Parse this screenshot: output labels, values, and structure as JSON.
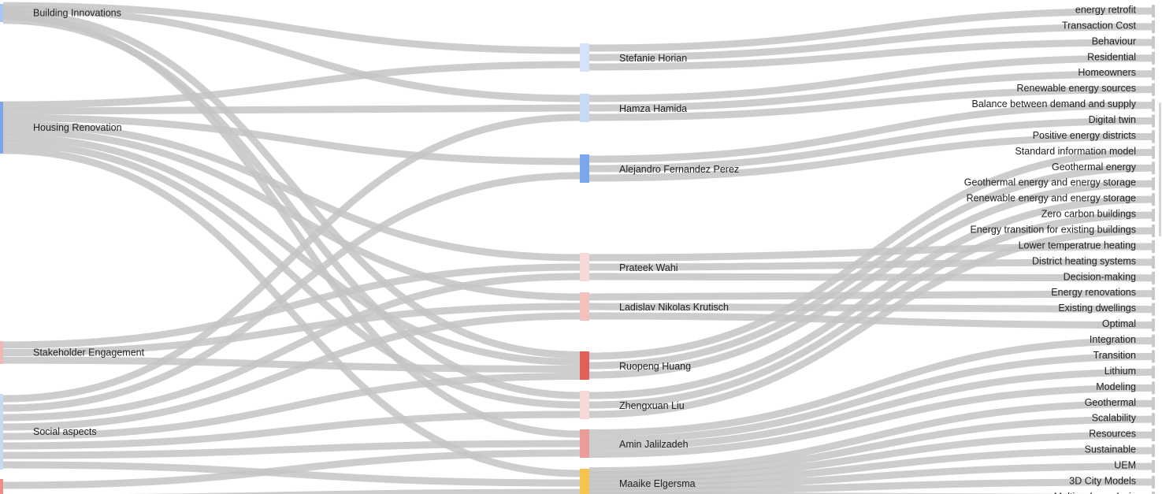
{
  "colors": {
    "link": "#c4c4c4",
    "blue_light": "#c6d9f5",
    "blue_mid": "#a9c6f2",
    "blue_strong": "#7ba5ec",
    "pink_light": "#f7d4d2",
    "pink_mid": "#f2b8b4",
    "red_strong": "#e0605a",
    "red_mid": "#ec9c98",
    "yellow": "#f6c44c"
  },
  "left_nodes": [
    {
      "id": "building",
      "label": "Building Innovations",
      "color": "#a9c6f2"
    },
    {
      "id": "housing",
      "label": "Housing Renovation",
      "color": "#7ba5ec"
    },
    {
      "id": "stake",
      "label": "Stakeholder Engagement",
      "color": "#f2b8b4"
    },
    {
      "id": "social",
      "label": "Social aspects",
      "color": "#c6d9f5"
    },
    {
      "id": "partial",
      "label": "",
      "color": "#ec8f8a"
    }
  ],
  "middle_nodes": [
    {
      "id": "horian",
      "label": "Stefanie Horian",
      "color": "#d4e3f8"
    },
    {
      "id": "hamida",
      "label": "Hamza Hamida",
      "color": "#c6d9f5"
    },
    {
      "id": "perez",
      "label": "Alejandro Fernandez Perez",
      "color": "#7ba5ec"
    },
    {
      "id": "wahi",
      "label": "Prateek Wahi",
      "color": "#f7d9d7"
    },
    {
      "id": "krutisch",
      "label": "Ladislav Nikolas Krutisch",
      "color": "#f3c0bc"
    },
    {
      "id": "huang",
      "label": "Ruopeng Huang",
      "color": "#e0605a"
    },
    {
      "id": "liu",
      "label": "Zhengxuan Liu",
      "color": "#f7d9d7"
    },
    {
      "id": "jalilzadeh",
      "label": "Amin Jalilzadeh",
      "color": "#ec9c98"
    },
    {
      "id": "elgersma",
      "label": "Maaike Elgersma",
      "color": "#f6c44c"
    }
  ],
  "right_nodes": [
    "energy retrofit",
    "Transaction Cost",
    "Behaviour",
    "Residential",
    "Homeowners",
    "Renewable energy sources",
    "Balance between demand and supply",
    "Digital twin",
    "Positive energy districts",
    "Standard information model",
    "Geothermal energy",
    "Geothermal energy and energy storage",
    "Renewable energy and energy storage",
    "Zero carbon buildings",
    "Energy transition for existing buildings",
    "Lower temperatrue heating",
    "District heating systems",
    "Decision-making",
    "Energy renovations",
    "Existing dwellings",
    "Optimal",
    "Integration",
    "Transition",
    "Lithium",
    "Modeling",
    "Geothermal",
    "Scalability",
    "Resources",
    "Sustainable",
    "UEM",
    "3D City Models",
    "Multiscale analysis"
  ],
  "links_left_middle": [
    [
      "building",
      "horian"
    ],
    [
      "building",
      "hamida"
    ],
    [
      "building",
      "huang"
    ],
    [
      "building",
      "jalilzadeh"
    ],
    [
      "building",
      "liu"
    ],
    [
      "housing",
      "horian"
    ],
    [
      "housing",
      "hamida"
    ],
    [
      "housing",
      "perez"
    ],
    [
      "housing",
      "wahi"
    ],
    [
      "housing",
      "krutisch"
    ],
    [
      "housing",
      "huang"
    ],
    [
      "housing",
      "liu"
    ],
    [
      "housing",
      "elgersma"
    ],
    [
      "stake",
      "wahi"
    ],
    [
      "stake",
      "krutisch"
    ],
    [
      "stake",
      "huang"
    ],
    [
      "social",
      "hamida"
    ],
    [
      "social",
      "perez"
    ],
    [
      "social",
      "wahi"
    ],
    [
      "social",
      "krutisch"
    ],
    [
      "social",
      "huang"
    ],
    [
      "social",
      "liu"
    ],
    [
      "social",
      "jalilzadeh"
    ],
    [
      "social",
      "elgersma"
    ],
    [
      "partial",
      "jalilzadeh"
    ],
    [
      "partial",
      "elgersma"
    ]
  ],
  "links_middle_right": [
    [
      "horian",
      "energy retrofit"
    ],
    [
      "horian",
      "Transaction Cost"
    ],
    [
      "horian",
      "Behaviour"
    ],
    [
      "hamida",
      "Residential"
    ],
    [
      "hamida",
      "Homeowners"
    ],
    [
      "hamida",
      "Renewable energy sources"
    ],
    [
      "perez",
      "Balance between demand and supply"
    ],
    [
      "perez",
      "Digital twin"
    ],
    [
      "perez",
      "Positive energy districts"
    ],
    [
      "wahi",
      "Lower temperatrue heating"
    ],
    [
      "wahi",
      "District heating systems"
    ],
    [
      "wahi",
      "Decision-making"
    ],
    [
      "krutisch",
      "Energy renovations"
    ],
    [
      "krutisch",
      "Existing dwellings"
    ],
    [
      "krutisch",
      "Optimal"
    ],
    [
      "huang",
      "Standard information model"
    ],
    [
      "huang",
      "Geothermal energy"
    ],
    [
      "huang",
      "Geothermal energy and energy storage"
    ],
    [
      "liu",
      "Renewable energy and energy storage"
    ],
    [
      "liu",
      "Zero carbon buildings"
    ],
    [
      "liu",
      "Energy transition for existing buildings"
    ],
    [
      "jalilzadeh",
      "Integration"
    ],
    [
      "jalilzadeh",
      "Transition"
    ],
    [
      "jalilzadeh",
      "Lithium"
    ],
    [
      "jalilzadeh",
      "Modeling"
    ],
    [
      "elgersma",
      "Geothermal"
    ],
    [
      "elgersma",
      "Scalability"
    ],
    [
      "elgersma",
      "Resources"
    ],
    [
      "elgersma",
      "Sustainable"
    ],
    [
      "elgersma",
      "UEM"
    ],
    [
      "elgersma",
      "3D City Models"
    ],
    [
      "elgersma",
      "Multiscale analysis"
    ]
  ]
}
